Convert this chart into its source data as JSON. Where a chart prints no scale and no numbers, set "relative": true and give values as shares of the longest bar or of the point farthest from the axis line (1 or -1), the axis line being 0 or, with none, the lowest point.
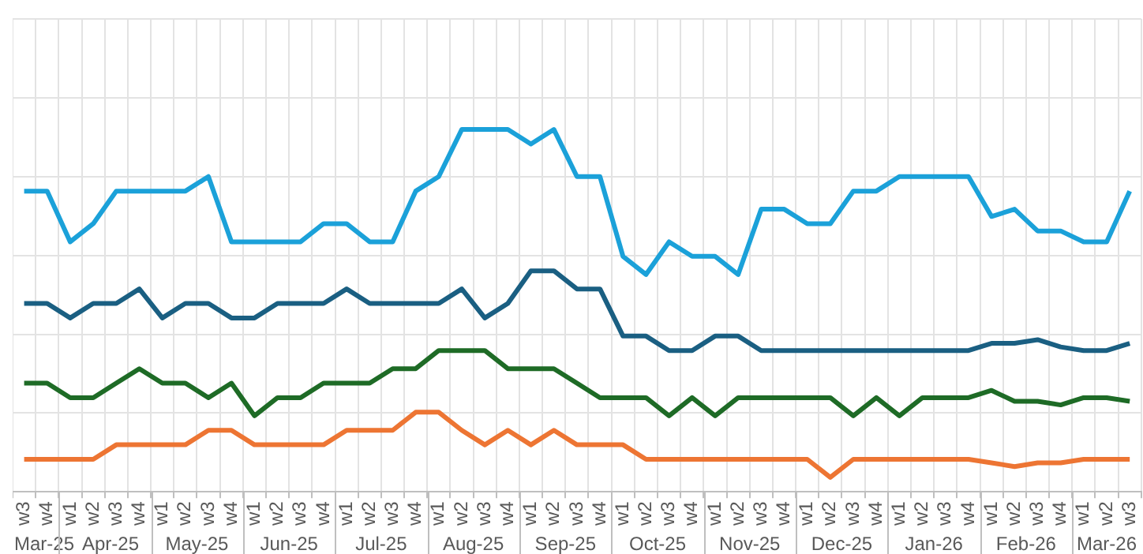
{
  "chart_data": {
    "type": "line",
    "relative": true,
    "grid": true,
    "legend": false,
    "marker": "none",
    "line_style": "solid",
    "categories": [
      "w3",
      "w4",
      "w1",
      "w2",
      "w3",
      "w4",
      "w1",
      "w2",
      "w3",
      "w4",
      "w1",
      "w2",
      "w3",
      "w4",
      "w1",
      "w2",
      "w3",
      "w4",
      "w1",
      "w2",
      "w3",
      "w4",
      "w1",
      "w2",
      "w3",
      "w4",
      "w1",
      "w2",
      "w3",
      "w4",
      "w1",
      "w2",
      "w3",
      "w4",
      "w1",
      "w2",
      "w3",
      "w4",
      "w1",
      "w2",
      "w3",
      "w4",
      "w1",
      "w2",
      "w3",
      "w4",
      "w1",
      "w2",
      "w3"
    ],
    "annotations": [
      "Mar-25",
      "Apr-25",
      "May-25",
      "Jun-25",
      "Jul-25",
      "Aug-25",
      "Sep-25",
      "Oct-25",
      "Nov-25",
      "Dec-25",
      "Jan-26",
      "Feb-26",
      "Mar-26"
    ],
    "series": [
      {
        "color": "#1ba1d9",
        "values": [
          0.83,
          0.83,
          0.69,
          0.74,
          0.83,
          0.83,
          0.83,
          0.83,
          0.87,
          0.69,
          0.69,
          0.69,
          0.69,
          0.74,
          0.74,
          0.69,
          0.69,
          0.83,
          0.87,
          1,
          1,
          1,
          0.96,
          1,
          0.87,
          0.87,
          0.65,
          0.6,
          0.69,
          0.65,
          0.65,
          0.6,
          0.78,
          0.78,
          0.74,
          0.74,
          0.83,
          0.83,
          0.87,
          0.87,
          0.87,
          0.87,
          0.76,
          0.78,
          0.72,
          0.72,
          0.69,
          0.69,
          0.83
        ]
      },
      {
        "color": "#1a5f82",
        "values": [
          0.52,
          0.52,
          0.48,
          0.52,
          0.52,
          0.56,
          0.48,
          0.52,
          0.52,
          0.48,
          0.48,
          0.52,
          0.52,
          0.52,
          0.56,
          0.52,
          0.52,
          0.52,
          0.52,
          0.56,
          0.48,
          0.52,
          0.61,
          0.61,
          0.56,
          0.56,
          0.43,
          0.43,
          0.39,
          0.39,
          0.43,
          0.43,
          0.39,
          0.39,
          0.39,
          0.39,
          0.39,
          0.39,
          0.39,
          0.39,
          0.39,
          0.39,
          0.41,
          0.41,
          0.42,
          0.4,
          0.39,
          0.39,
          0.41
        ]
      },
      {
        "color": "#1e6b26",
        "values": [
          0.3,
          0.3,
          0.26,
          0.26,
          0.3,
          0.34,
          0.3,
          0.3,
          0.26,
          0.3,
          0.21,
          0.26,
          0.26,
          0.3,
          0.3,
          0.3,
          0.34,
          0.34,
          0.39,
          0.39,
          0.39,
          0.34,
          0.34,
          0.34,
          0.3,
          0.26,
          0.26,
          0.26,
          0.21,
          0.26,
          0.21,
          0.26,
          0.26,
          0.26,
          0.26,
          0.26,
          0.21,
          0.26,
          0.21,
          0.26,
          0.26,
          0.26,
          0.28,
          0.25,
          0.25,
          0.24,
          0.26,
          0.26,
          0.25
        ]
      },
      {
        "color": "#ed7533",
        "values": [
          0.09,
          0.09,
          0.09,
          0.09,
          0.13,
          0.13,
          0.13,
          0.13,
          0.17,
          0.17,
          0.13,
          0.13,
          0.13,
          0.13,
          0.17,
          0.17,
          0.17,
          0.22,
          0.22,
          0.17,
          0.13,
          0.17,
          0.13,
          0.17,
          0.13,
          0.13,
          0.13,
          0.09,
          0.09,
          0.09,
          0.09,
          0.09,
          0.09,
          0.09,
          0.09,
          0.04,
          0.09,
          0.09,
          0.09,
          0.09,
          0.09,
          0.09,
          0.08,
          0.07,
          0.08,
          0.08,
          0.09,
          0.09,
          0.09
        ]
      }
    ]
  }
}
